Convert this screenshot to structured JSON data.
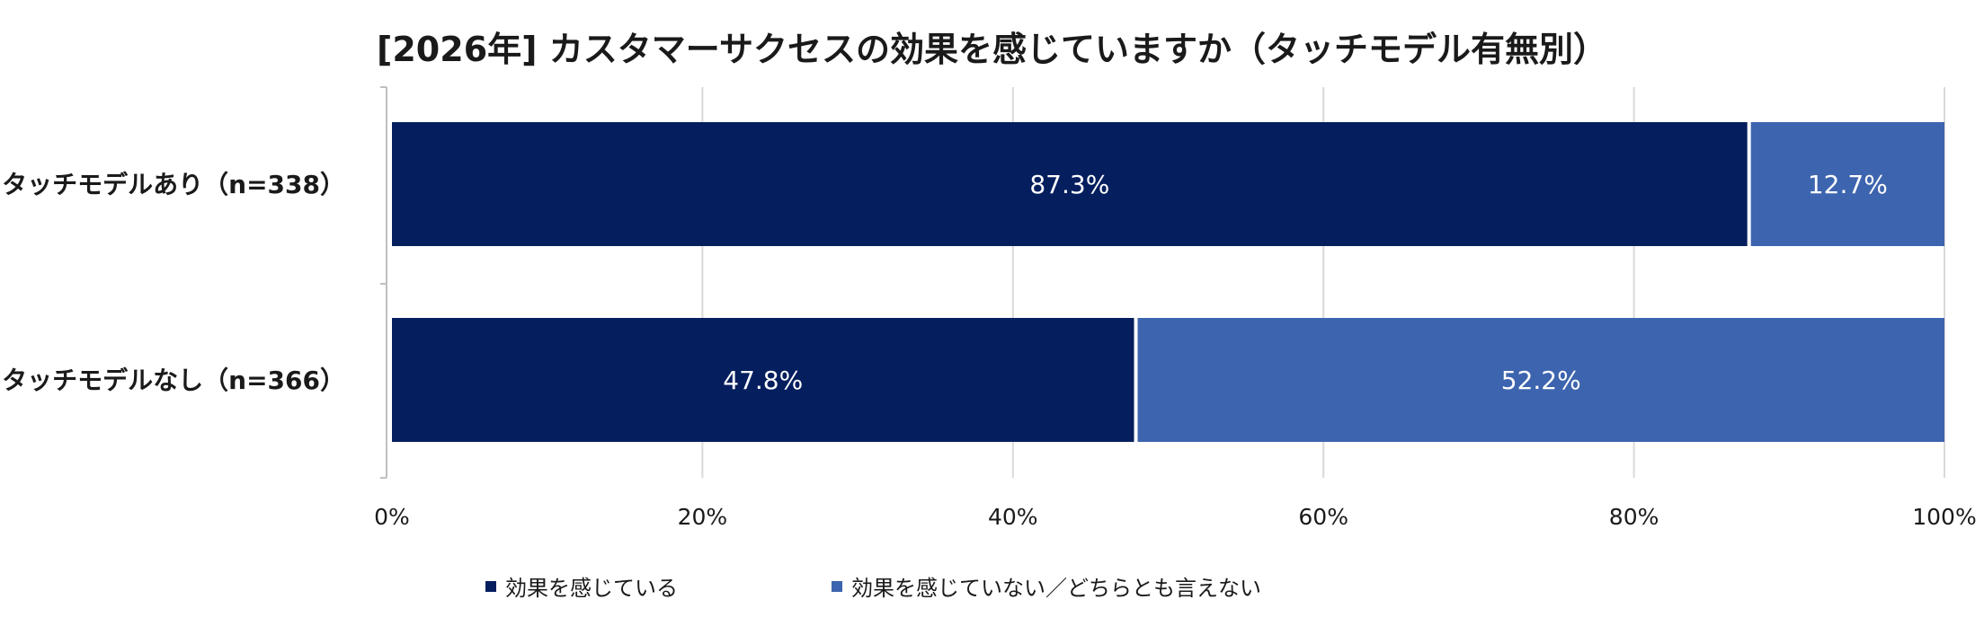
{
  "chart_data": {
    "type": "bar",
    "orientation": "horizontal",
    "stacked": true,
    "title": "[2026年] カスタマーサクセスの効果を感じていますか（タッチモデル有無別）",
    "categories": [
      "タッチモデルあり（n=338）",
      "タッチモデルなし（n=366）"
    ],
    "series": [
      {
        "name": "効果を感じている",
        "values": [
          87.3,
          47.8
        ],
        "labels": [
          "87.3%",
          "47.8%"
        ],
        "color": "#041e5e"
      },
      {
        "name": "効果を感じていない／どちらとも言えない",
        "values": [
          12.7,
          52.2
        ],
        "labels": [
          "12.7%",
          "52.2%"
        ],
        "color": "#3d64ae"
      }
    ],
    "xlim": [
      0,
      100
    ],
    "xticks": [
      "0%",
      "20%",
      "40%",
      "60%",
      "80%",
      "100%"
    ],
    "xtick_values": [
      0,
      20,
      40,
      60,
      80,
      100
    ],
    "grid": true,
    "legend_position": "bottom"
  }
}
